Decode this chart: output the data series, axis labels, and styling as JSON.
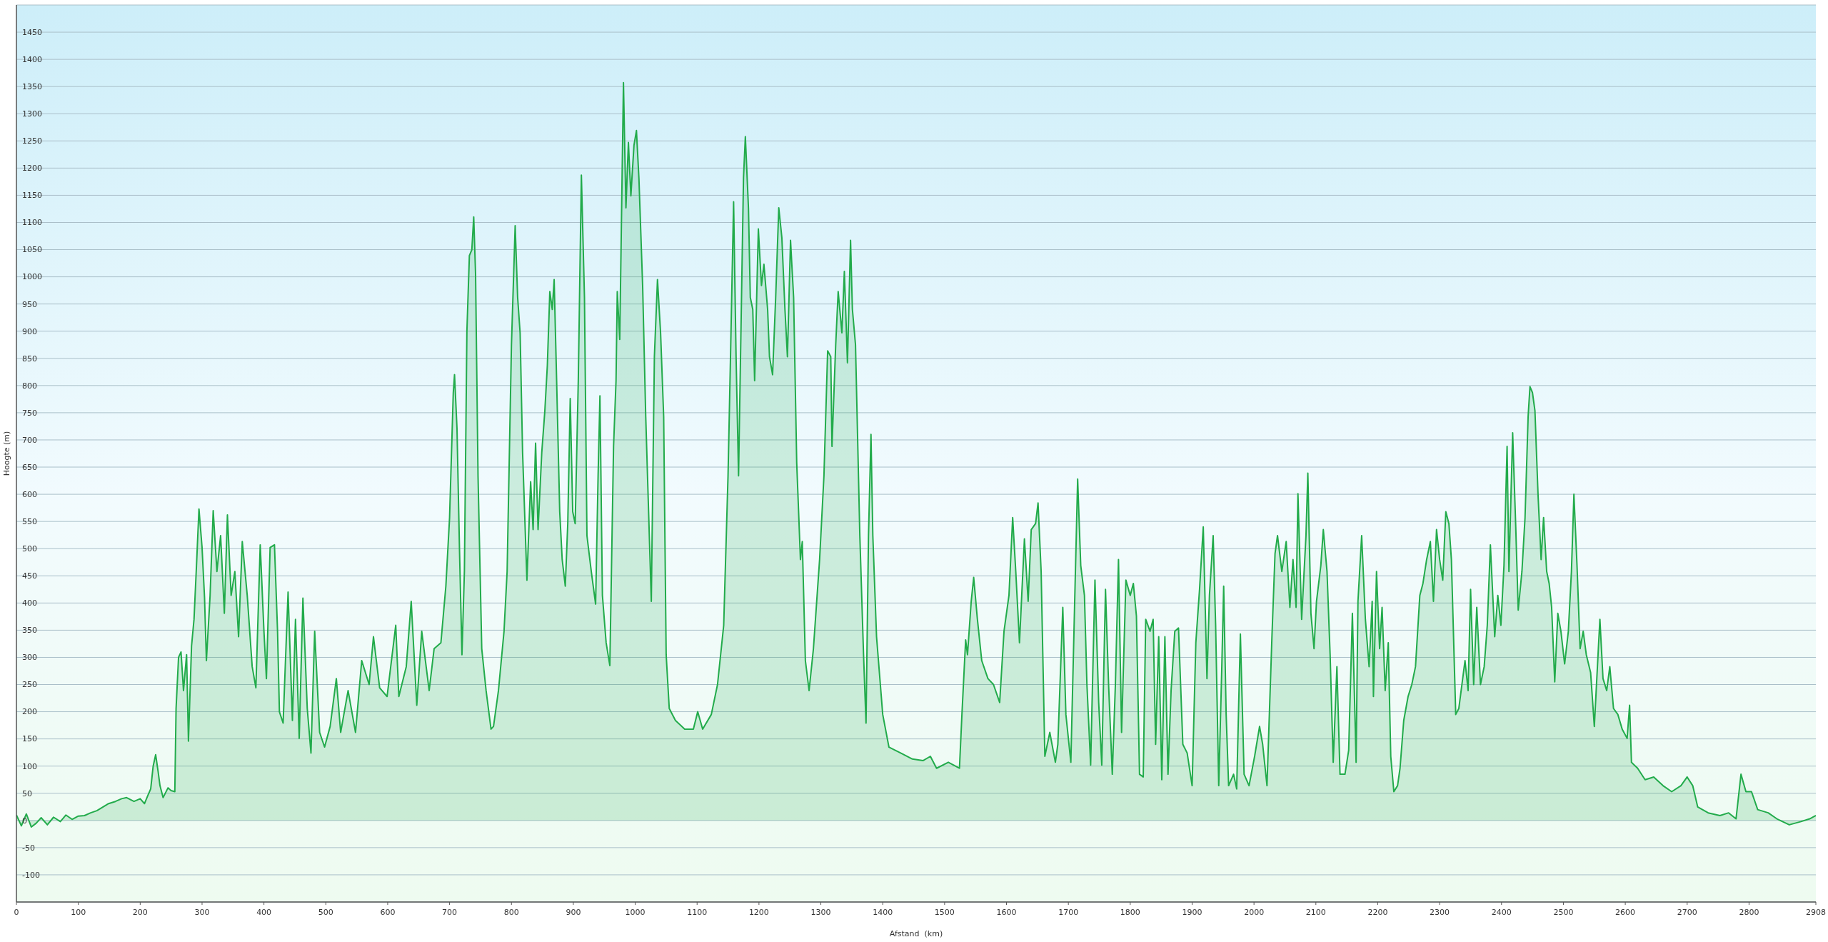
{
  "chart_data": {
    "type": "area",
    "xlabel": "Afstand  (km)",
    "ylabel": "Hoogte (m)",
    "color": "#22ab4b",
    "x": [
      0,
      8,
      16,
      24,
      32,
      40,
      50,
      60,
      71,
      80,
      90,
      100,
      110,
      120,
      130,
      140,
      149,
      160,
      170,
      178,
      190,
      200,
      207,
      212,
      217,
      221,
      225,
      229,
      232,
      237,
      245,
      250,
      256,
      258,
      262,
      266,
      270,
      275,
      278,
      283,
      287,
      291,
      295,
      300,
      304,
      307,
      313,
      318,
      324,
      330,
      336,
      341,
      347,
      353,
      359,
      365,
      373,
      381,
      387,
      394,
      400,
      404,
      410,
      417,
      422,
      425,
      431,
      439,
      446,
      451,
      457,
      463,
      470,
      476,
      482,
      490,
      498,
      507,
      517,
      524,
      536,
      548,
      558,
      570,
      577,
      587,
      599,
      613,
      618,
      630,
      638,
      647,
      655,
      667,
      675,
      686,
      694,
      700,
      706,
      708,
      712,
      716,
      720,
      724,
      728,
      732,
      736,
      739,
      742,
      746,
      752,
      759,
      767,
      771,
      779,
      788,
      793,
      800,
      806,
      810,
      814,
      818,
      825,
      831,
      835,
      839,
      843,
      849,
      854,
      858,
      862,
      866,
      869,
      873,
      878,
      882,
      887,
      891,
      895,
      899,
      903,
      908,
      913,
      918,
      922,
      929,
      936,
      940,
      943,
      947,
      953,
      959,
      965,
      969,
      971,
      975,
      981,
      985,
      989,
      993,
      998,
      1002,
      1006,
      1012,
      1017,
      1026,
      1031,
      1036,
      1041,
      1046,
      1050,
      1055,
      1065,
      1080,
      1094,
      1101,
      1109,
      1123,
      1133,
      1143,
      1150,
      1154,
      1159,
      1163,
      1167,
      1171,
      1175,
      1178,
      1183,
      1186,
      1190,
      1193,
      1199,
      1204,
      1208,
      1214,
      1217,
      1222,
      1227,
      1232,
      1237,
      1242,
      1246,
      1251,
      1256,
      1261,
      1267,
      1270,
      1275,
      1281,
      1288,
      1298,
      1305,
      1311,
      1316,
      1318,
      1324,
      1328,
      1334,
      1338,
      1343,
      1348,
      1351,
      1356,
      1363,
      1369,
      1373,
      1377,
      1381,
      1384,
      1390,
      1400,
      1410,
      1429,
      1448,
      1465,
      1477,
      1487,
      1506,
      1524,
      1528,
      1534,
      1537,
      1543,
      1547,
      1553,
      1560,
      1570,
      1579,
      1589,
      1596,
      1604,
      1610,
      1615,
      1621,
      1629,
      1635,
      1640,
      1647,
      1651,
      1656,
      1662,
      1670,
      1679,
      1683,
      1691,
      1696,
      1704,
      1710,
      1715,
      1720,
      1726,
      1730,
      1736,
      1739,
      1743,
      1749,
      1754,
      1760,
      1765,
      1771,
      1776,
      1781,
      1786,
      1793,
      1800,
      1805,
      1810,
      1815,
      1821,
      1825,
      1832,
      1837,
      1841,
      1846,
      1851,
      1856,
      1861,
      1866,
      1872,
      1878,
      1885,
      1892,
      1900,
      1906,
      1912,
      1918,
      1924,
      1928,
      1934,
      1938,
      1943,
      1948,
      1951,
      1955,
      1959,
      1967,
      1972,
      1978,
      1984,
      1992,
      2001,
      2009,
      2014,
      2021,
      2029,
      2034,
      2038,
      2045,
      2052,
      2058,
      2063,
      2068,
      2071,
      2077,
      2084,
      2087,
      2092,
      2097,
      2101,
      2108,
      2112,
      2118,
      2123,
      2128,
      2134,
      2139,
      2147,
      2153,
      2159,
      2165,
      2168,
      2174,
      2180,
      2186,
      2191,
      2193,
      2198,
      2203,
      2207,
      2212,
      2217,
      2221,
      2226,
      2232,
      2236,
      2242,
      2249,
      2255,
      2261,
      2268,
      2273,
      2279,
      2285,
      2290,
      2295,
      2300,
      2305,
      2310,
      2315,
      2319,
      2326,
      2331,
      2336,
      2341,
      2346,
      2350,
      2355,
      2360,
      2366,
      2372,
      2377,
      2382,
      2389,
      2394,
      2399,
      2404,
      2409,
      2412,
      2418,
      2423,
      2427,
      2433,
      2438,
      2443,
      2446,
      2450,
      2454,
      2459,
      2464,
      2468,
      2473,
      2477,
      2481,
      2486,
      2491,
      2496,
      2502,
      2508,
      2513,
      2517,
      2522,
      2527,
      2532,
      2537,
      2544,
      2550,
      2556,
      2559,
      2564,
      2570,
      2575,
      2581,
      2588,
      2595,
      2603,
      2607,
      2610,
      2620,
      2632,
      2646,
      2661,
      2675,
      2690,
      2700,
      2709,
      2717,
      2734,
      2753,
      2767,
      2779,
      2787,
      2795,
      2804,
      2814,
      2831,
      2845,
      2865,
      2884,
      2898,
      2908
    ],
    "values": [
      10,
      -10,
      12,
      -12,
      -5,
      5,
      -8,
      6,
      -2,
      10,
      2,
      8,
      9,
      14,
      18,
      25,
      31,
      35,
      40,
      42,
      35,
      40,
      31,
      45,
      58,
      100,
      121,
      90,
      64,
      42,
      60,
      55,
      53,
      206,
      300,
      310,
      239,
      305,
      146,
      321,
      370,
      469,
      573,
      502,
      410,
      294,
      414,
      570,
      458,
      524,
      381,
      562,
      414,
      458,
      338,
      513,
      414,
      283,
      244,
      507,
      348,
      261,
      502,
      507,
      348,
      200,
      179,
      420,
      184,
      370,
      151,
      409,
      206,
      124,
      348,
      162,
      135,
      173,
      261,
      162,
      239,
      162,
      294,
      250,
      338,
      244,
      228,
      359,
      228,
      283,
      403,
      212,
      348,
      239,
      316,
      327,
      431,
      557,
      787,
      820,
      721,
      500,
      305,
      460,
      900,
      1039,
      1050,
      1110,
      1006,
      633,
      316,
      239,
      168,
      173,
      239,
      348,
      458,
      875,
      1094,
      962,
      897,
      677,
      442,
      623,
      535,
      694,
      535,
      677,
      754,
      837,
      973,
      940,
      995,
      809,
      568,
      480,
      431,
      546,
      776,
      568,
      546,
      809,
      1187,
      962,
      524,
      458,
      398,
      633,
      781,
      414,
      327,
      285,
      688,
      809,
      973,
      885,
      1357,
      1127,
      1247,
      1149,
      1242,
      1269,
      1181,
      984,
      743,
      403,
      853,
      995,
      897,
      743,
      305,
      206,
      184,
      168,
      168,
      200,
      168,
      195,
      250,
      359,
      634,
      853,
      1138,
      853,
      634,
      908,
      1182,
      1258,
      1127,
      962,
      940,
      809,
      1088,
      984,
      1023,
      940,
      853,
      820,
      962,
      1127,
      1072,
      940,
      853,
      1067,
      962,
      658,
      480,
      513,
      294,
      239,
      316,
      480,
      634,
      864,
      853,
      688,
      875,
      973,
      897,
      1010,
      842,
      1067,
      940,
      875,
      524,
      305,
      179,
      524,
      710,
      524,
      338,
      195,
      135,
      124,
      113,
      110,
      118,
      96,
      107,
      96,
      195,
      332,
      305,
      403,
      447,
      370,
      294,
      261,
      250,
      217,
      348,
      414,
      557,
      458,
      327,
      518,
      403,
      535,
      546,
      584,
      458,
      118,
      162,
      107,
      140,
      392,
      195,
      107,
      392,
      628,
      469,
      414,
      250,
      102,
      250,
      442,
      217,
      102,
      425,
      250,
      85,
      250,
      480,
      162,
      442,
      414,
      436,
      376,
      85,
      80,
      370,
      348,
      370,
      140,
      338,
      75,
      338,
      85,
      239,
      348,
      354,
      140,
      124,
      64,
      327,
      425,
      540,
      261,
      414,
      524,
      359,
      64,
      283,
      431,
      195,
      64,
      85,
      58,
      343,
      85,
      64,
      118,
      173,
      140,
      64,
      338,
      491,
      524,
      458,
      513,
      392,
      480,
      392,
      601,
      370,
      524,
      639,
      381,
      316,
      403,
      469,
      535,
      458,
      305,
      107,
      283,
      85,
      85,
      129,
      381,
      107,
      403,
      524,
      370,
      283,
      403,
      228,
      458,
      316,
      392,
      239,
      327,
      118,
      53,
      64,
      96,
      184,
      228,
      250,
      283,
      414,
      436,
      480,
      513,
      403,
      535,
      480,
      442,
      568,
      546,
      480,
      195,
      206,
      250,
      294,
      239,
      425,
      250,
      392,
      250,
      283,
      359,
      507,
      338,
      414,
      359,
      469,
      688,
      458,
      713,
      540,
      387,
      458,
      557,
      743,
      798,
      787,
      754,
      600,
      480,
      557,
      458,
      436,
      392,
      255,
      381,
      348,
      288,
      348,
      458,
      600,
      469,
      316,
      348,
      305,
      272,
      173,
      305,
      370,
      261,
      239,
      283,
      206,
      195,
      168,
      151,
      212,
      107,
      96,
      75,
      80,
      64,
      53,
      64,
      80,
      64,
      25,
      14,
      9,
      14,
      3,
      85,
      53,
      53,
      20,
      14,
      3,
      -8,
      -2,
      3,
      9
    ],
    "xlim": [
      0,
      2908
    ],
    "ylim": [
      -150,
      1500
    ],
    "xticks": [
      0,
      100,
      200,
      300,
      400,
      500,
      600,
      700,
      800,
      900,
      1000,
      1100,
      1200,
      1300,
      1400,
      1500,
      1600,
      1700,
      1800,
      1900,
      2000,
      2100,
      2200,
      2300,
      2400,
      2500,
      2600,
      2700,
      2800,
      2908
    ],
    "yticks": [
      -100,
      -50,
      0,
      50,
      100,
      150,
      200,
      250,
      300,
      350,
      400,
      450,
      500,
      550,
      600,
      650,
      700,
      750,
      800,
      850,
      900,
      950,
      1000,
      1050,
      1100,
      1150,
      1200,
      1250,
      1300,
      1350,
      1400,
      1450
    ],
    "grid": "y"
  }
}
